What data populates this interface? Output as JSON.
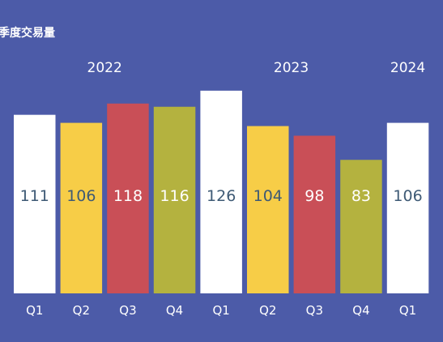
{
  "title": "季度交易量",
  "chart_data": {
    "type": "bar",
    "title": "季度交易量",
    "xlabel": "",
    "ylabel": "",
    "ylim": [
      0,
      140
    ],
    "grid": false,
    "legend": "none",
    "years": [
      {
        "label": "2022",
        "span": [
          0,
          3
        ]
      },
      {
        "label": "2023",
        "span": [
          4,
          7
        ]
      },
      {
        "label": "2024",
        "span": [
          8,
          8
        ]
      }
    ],
    "categories": [
      "Q1",
      "Q2",
      "Q3",
      "Q4",
      "Q1",
      "Q2",
      "Q3",
      "Q4",
      "Q1"
    ],
    "values": [
      111,
      106,
      118,
      116,
      126,
      104,
      98,
      83,
      106
    ],
    "colors": {
      "Q1": "#ffffff",
      "Q2": "#f7cd47",
      "Q3": "#c94f57",
      "Q4": "#b4b23f"
    },
    "value_label_colors": {
      "Q1": "#3e5a75",
      "Q2": "#3e5a75",
      "Q3": "#ffffff",
      "Q4": "#ffffff"
    }
  }
}
